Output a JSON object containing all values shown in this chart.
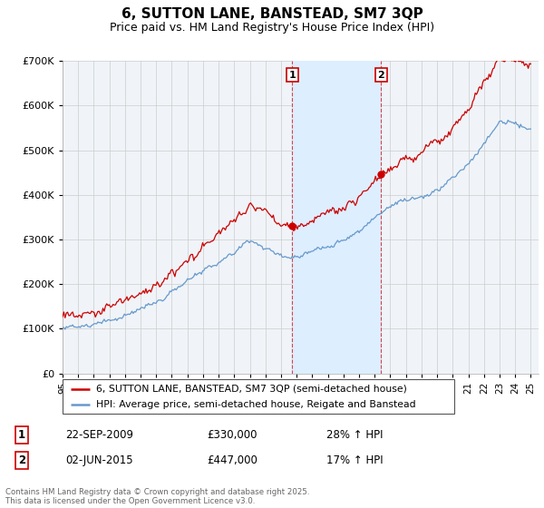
{
  "title": "6, SUTTON LANE, BANSTEAD, SM7 3QP",
  "subtitle": "Price paid vs. HM Land Registry's House Price Index (HPI)",
  "legend_line1": "6, SUTTON LANE, BANSTEAD, SM7 3QP (semi-detached house)",
  "legend_line2": "HPI: Average price, semi-detached house, Reigate and Banstead",
  "annotation1_date": "22-SEP-2009",
  "annotation1_price": "£330,000",
  "annotation1_hpi": "28% ↑ HPI",
  "annotation2_date": "02-JUN-2015",
  "annotation2_price": "£447,000",
  "annotation2_hpi": "17% ↑ HPI",
  "footer": "Contains HM Land Registry data © Crown copyright and database right 2025.\nThis data is licensed under the Open Government Licence v3.0.",
  "sale1_year": 2009.72,
  "sale1_price": 330000,
  "sale2_year": 2015.42,
  "sale2_price": 447000,
  "red_color": "#cc0000",
  "blue_color": "#6699cc",
  "shading_color": "#ddeeff",
  "background_color": "#f0f4f8",
  "grid_color": "#cccccc",
  "ylim_max": 700000,
  "ylim_min": 0,
  "xmin": 1995,
  "xmax": 2025
}
